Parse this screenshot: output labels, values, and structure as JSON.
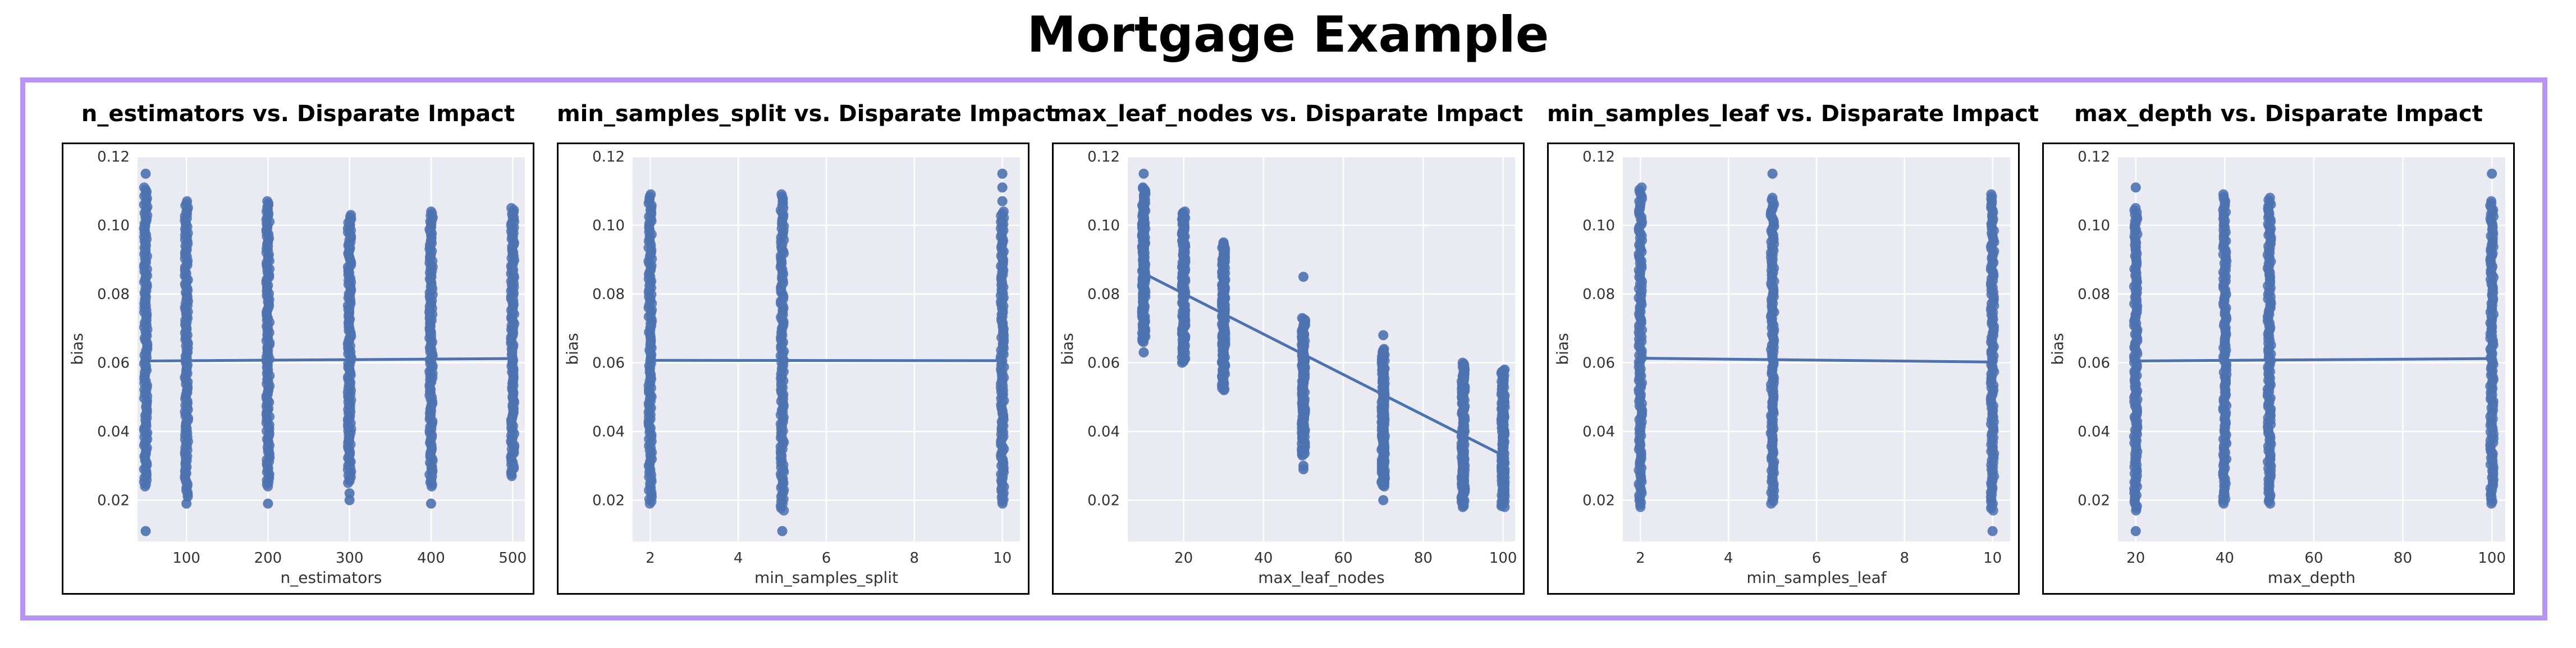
{
  "page": {
    "title": "Mortgage Example"
  },
  "colors": {
    "frame": "#b794f6",
    "plot_bg": "#eaeaf2",
    "grid": "#ffffff",
    "points": "#4c72b0",
    "tick_text": "#333333"
  },
  "chart_data": [
    {
      "type": "scatter",
      "title": "n_estimators vs. Disparate Impact",
      "xlabel": "n_estimators",
      "ylabel": "bias",
      "xlim": [
        40,
        515
      ],
      "ylim": [
        0.008,
        0.12
      ],
      "xticks": [
        100,
        200,
        300,
        400,
        500
      ],
      "yticks": [
        0.02,
        0.04,
        0.06,
        0.08,
        0.1,
        0.12
      ],
      "grid": true,
      "columns": [
        {
          "x": 50,
          "ymin": 0.024,
          "ymax": 0.111,
          "outliers": [
            0.115,
            0.011
          ]
        },
        {
          "x": 100,
          "ymin": 0.021,
          "ymax": 0.107,
          "outliers": [
            0.019
          ]
        },
        {
          "x": 200,
          "ymin": 0.024,
          "ymax": 0.107,
          "outliers": [
            0.019
          ]
        },
        {
          "x": 300,
          "ymin": 0.025,
          "ymax": 0.103,
          "outliers": [
            0.02,
            0.022
          ]
        },
        {
          "x": 400,
          "ymin": 0.024,
          "ymax": 0.104,
          "outliers": [
            0.019
          ]
        },
        {
          "x": 500,
          "ymin": 0.027,
          "ymax": 0.105,
          "outliers": []
        }
      ],
      "regression": {
        "x": [
          50,
          500
        ],
        "y": [
          0.0605,
          0.0612
        ]
      }
    },
    {
      "type": "scatter",
      "title": "min_samples_split vs. Disparate Impact",
      "xlabel": "min_samples_split",
      "ylabel": "bias",
      "xlim": [
        1.6,
        10.4
      ],
      "ylim": [
        0.008,
        0.12
      ],
      "xticks": [
        2,
        4,
        6,
        8,
        10
      ],
      "yticks": [
        0.02,
        0.04,
        0.06,
        0.08,
        0.1,
        0.12
      ],
      "grid": true,
      "columns": [
        {
          "x": 2,
          "ymin": 0.019,
          "ymax": 0.109,
          "outliers": []
        },
        {
          "x": 5,
          "ymin": 0.017,
          "ymax": 0.109,
          "outliers": [
            0.011
          ]
        },
        {
          "x": 10,
          "ymin": 0.019,
          "ymax": 0.104,
          "outliers": [
            0.115,
            0.111,
            0.107
          ]
        }
      ],
      "regression": {
        "x": [
          2,
          10
        ],
        "y": [
          0.0607,
          0.0606
        ]
      }
    },
    {
      "type": "scatter",
      "title": "max_leaf_nodes vs. Disparate Impact",
      "xlabel": "max_leaf_nodes",
      "ylabel": "bias",
      "xlim": [
        6,
        103
      ],
      "ylim": [
        0.008,
        0.12
      ],
      "xticks": [
        20,
        40,
        60,
        80,
        100
      ],
      "yticks": [
        0.02,
        0.04,
        0.06,
        0.08,
        0.1,
        0.12
      ],
      "grid": true,
      "columns": [
        {
          "x": 10,
          "ymin": 0.066,
          "ymax": 0.111,
          "outliers": [
            0.115,
            0.063
          ]
        },
        {
          "x": 20,
          "ymin": 0.06,
          "ymax": 0.104,
          "outliers": []
        },
        {
          "x": 30,
          "ymin": 0.052,
          "ymax": 0.095,
          "outliers": []
        },
        {
          "x": 50,
          "ymin": 0.033,
          "ymax": 0.073,
          "outliers": [
            0.085,
            0.03,
            0.029
          ]
        },
        {
          "x": 70,
          "ymin": 0.024,
          "ymax": 0.064,
          "outliers": [
            0.068,
            0.02
          ]
        },
        {
          "x": 90,
          "ymin": 0.018,
          "ymax": 0.06,
          "outliers": []
        },
        {
          "x": 100,
          "ymin": 0.018,
          "ymax": 0.058,
          "outliers": []
        }
      ],
      "regression": {
        "x": [
          10,
          100
        ],
        "y": [
          0.086,
          0.033
        ]
      }
    },
    {
      "type": "scatter",
      "title": "min_samples_leaf vs. Disparate Impact",
      "xlabel": "min_samples_leaf",
      "ylabel": "bias",
      "xlim": [
        1.6,
        10.4
      ],
      "ylim": [
        0.008,
        0.12
      ],
      "xticks": [
        2,
        4,
        6,
        8,
        10
      ],
      "yticks": [
        0.02,
        0.04,
        0.06,
        0.08,
        0.1,
        0.12
      ],
      "grid": true,
      "columns": [
        {
          "x": 2,
          "ymin": 0.018,
          "ymax": 0.111,
          "outliers": []
        },
        {
          "x": 5,
          "ymin": 0.019,
          "ymax": 0.108,
          "outliers": [
            0.115
          ]
        },
        {
          "x": 10,
          "ymin": 0.017,
          "ymax": 0.109,
          "outliers": [
            0.011
          ]
        }
      ],
      "regression": {
        "x": [
          2,
          10
        ],
        "y": [
          0.0613,
          0.0602
        ]
      }
    },
    {
      "type": "scatter",
      "title": "max_depth vs. Disparate Impact",
      "xlabel": "max_depth",
      "ylabel": "bias",
      "xlim": [
        16,
        103
      ],
      "ylim": [
        0.008,
        0.12
      ],
      "xticks": [
        20,
        40,
        60,
        80,
        100
      ],
      "yticks": [
        0.02,
        0.04,
        0.06,
        0.08,
        0.1,
        0.12
      ],
      "grid": true,
      "columns": [
        {
          "x": 20,
          "ymin": 0.017,
          "ymax": 0.105,
          "outliers": [
            0.111,
            0.011
          ]
        },
        {
          "x": 40,
          "ymin": 0.019,
          "ymax": 0.109,
          "outliers": []
        },
        {
          "x": 50,
          "ymin": 0.019,
          "ymax": 0.108,
          "outliers": []
        },
        {
          "x": 100,
          "ymin": 0.019,
          "ymax": 0.107,
          "outliers": [
            0.115
          ]
        }
      ],
      "regression": {
        "x": [
          20,
          100
        ],
        "y": [
          0.0605,
          0.0612
        ]
      }
    }
  ]
}
